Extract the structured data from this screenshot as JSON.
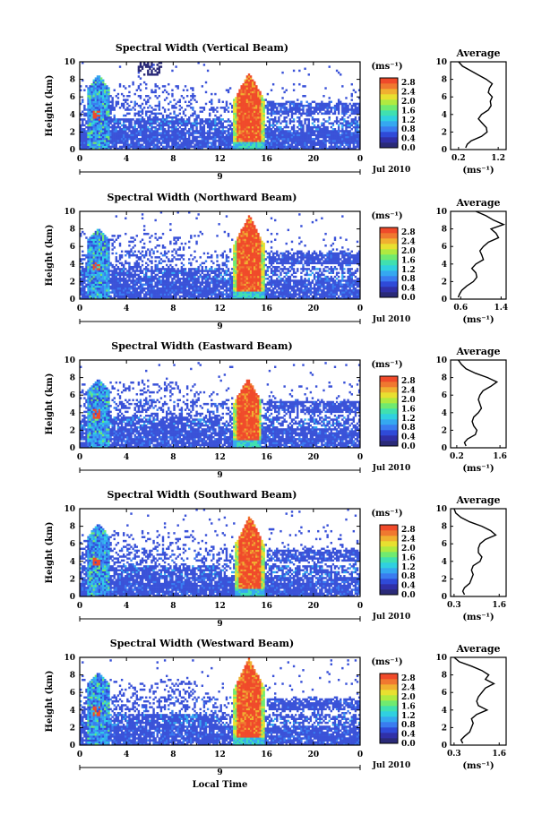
{
  "colors": {
    "colorbar": [
      "#2a2a78",
      "#3030a8",
      "#2f4ad8",
      "#3a7cf0",
      "#35a8f0",
      "#30d0e0",
      "#40e0b0",
      "#70ea70",
      "#b0ea40",
      "#e8e030",
      "#f0b030",
      "#f07830",
      "#f04a2a"
    ],
    "low": "#3a52d8",
    "mid": "#35b8e8",
    "high": "#f04a2a",
    "profile": "#000000"
  },
  "x_label": "Local Time",
  "date_label": "Jul 2010",
  "day_label": "9",
  "colorbar_unit": "(ms⁻¹)",
  "chart_data": [
    {
      "type": "heatmap",
      "title": "Spectral Width (Vertical Beam)",
      "ylabel": "Height (km)",
      "xlabel": "Local Time",
      "xlim": [
        0,
        24
      ],
      "ylim": [
        0,
        10
      ],
      "xticks": [
        "0",
        "4",
        "8",
        "12",
        "16",
        "20",
        "0"
      ],
      "yticks": [
        "0",
        "2",
        "4",
        "6",
        "8",
        "10"
      ],
      "colorbar": {
        "unit": "(ms⁻¹)",
        "ticks": [
          "0.0",
          "0.4",
          "0.8",
          "1.2",
          "1.6",
          "2.0",
          "2.4",
          "2.8"
        ],
        "range": [
          0,
          3.0
        ]
      },
      "features": {
        "convection_start_h": 13.2,
        "convection_end_h": 15.8,
        "convection_top_km": 8.8,
        "early_plume_h": [
          0.6,
          2.5
        ],
        "early_plume_top_km": 8.5
      },
      "profile": {
        "title": "Average",
        "xlabel": "(ms⁻¹)",
        "xticks": [
          "0.2",
          "1.2"
        ],
        "xlim": [
          0.0,
          1.4
        ],
        "height": [
          0.2,
          0.6,
          1.0,
          1.5,
          2.0,
          2.5,
          3.0,
          3.5,
          4.0,
          4.5,
          5.0,
          5.5,
          6.0,
          6.5,
          7.0,
          7.5,
          8.0,
          8.5,
          9.0,
          9.5,
          10.0
        ],
        "values": [
          0.38,
          0.42,
          0.52,
          0.78,
          0.92,
          0.9,
          0.8,
          0.7,
          0.78,
          0.95,
          1.02,
          1.0,
          1.05,
          0.95,
          0.98,
          1.05,
          0.9,
          0.7,
          0.5,
          0.3,
          0.2
        ]
      }
    },
    {
      "type": "heatmap",
      "title": "Spectral Width (Northward Beam)",
      "ylabel": "Height (km)",
      "xlabel": "Local Time",
      "xlim": [
        0,
        24
      ],
      "ylim": [
        0,
        10
      ],
      "xticks": [
        "0",
        "4",
        "8",
        "12",
        "16",
        "20",
        "0"
      ],
      "yticks": [
        "0",
        "2",
        "4",
        "6",
        "8",
        "10"
      ],
      "colorbar": {
        "unit": "(ms⁻¹)",
        "ticks": [
          "0.0",
          "0.4",
          "0.8",
          "1.2",
          "1.6",
          "2.0",
          "2.4",
          "2.8"
        ],
        "range": [
          0,
          3.0
        ]
      },
      "features": {
        "convection_start_h": 13.2,
        "convection_end_h": 15.8,
        "convection_top_km": 9.6,
        "early_plume_h": [
          0.6,
          2.5
        ],
        "early_plume_top_km": 8.2
      },
      "profile": {
        "title": "Average",
        "xlabel": "(ms⁻¹)",
        "xticks": [
          "0.6",
          "1.4"
        ],
        "xlim": [
          0.4,
          1.5
        ],
        "height": [
          0.2,
          0.6,
          1.0,
          1.5,
          2.0,
          2.5,
          3.0,
          3.5,
          4.0,
          4.5,
          5.0,
          5.5,
          6.0,
          6.5,
          7.0,
          7.5,
          8.0,
          8.5,
          9.0,
          9.5,
          10.0
        ],
        "values": [
          0.55,
          0.58,
          0.62,
          0.72,
          0.85,
          0.92,
          0.9,
          0.82,
          0.9,
          1.05,
          1.02,
          0.98,
          1.05,
          1.15,
          1.35,
          1.3,
          1.2,
          1.45,
          1.25,
          1.1,
          0.9
        ]
      }
    },
    {
      "type": "heatmap",
      "title": "Spectral Width (Eastward Beam)",
      "ylabel": "Height (km)",
      "xlabel": "Local Time",
      "xlim": [
        0,
        24
      ],
      "ylim": [
        0,
        10
      ],
      "xticks": [
        "0",
        "4",
        "8",
        "12",
        "16",
        "20",
        "0"
      ],
      "yticks": [
        "0",
        "2",
        "4",
        "6",
        "8",
        "10"
      ],
      "colorbar": {
        "unit": "(ms⁻¹)",
        "ticks": [
          "0.0",
          "0.4",
          "0.8",
          "1.2",
          "1.6",
          "2.0",
          "2.4",
          "2.8"
        ],
        "range": [
          0,
          3.0
        ]
      },
      "features": {
        "convection_start_h": 13.2,
        "convection_end_h": 15.6,
        "convection_top_km": 8.0,
        "early_plume_h": [
          0.6,
          2.5
        ],
        "early_plume_top_km": 8.0
      },
      "profile": {
        "title": "Average",
        "xlabel": "(ms⁻¹)",
        "xticks": [
          "0.2",
          "1.6"
        ],
        "xlim": [
          0.0,
          1.8
        ],
        "height": [
          0.2,
          0.6,
          1.0,
          1.5,
          2.0,
          2.5,
          3.0,
          3.5,
          4.0,
          4.5,
          5.0,
          5.5,
          6.0,
          6.5,
          7.0,
          7.5,
          8.0,
          8.5,
          9.0,
          9.5,
          10.0
        ],
        "values": [
          0.5,
          0.45,
          0.55,
          0.8,
          0.85,
          0.75,
          0.7,
          0.75,
          0.9,
          1.0,
          0.95,
          0.9,
          0.95,
          1.05,
          1.3,
          1.5,
          1.2,
          0.8,
          0.5,
          0.35,
          0.25
        ]
      }
    },
    {
      "type": "heatmap",
      "title": "Spectral Width (Southward Beam)",
      "ylabel": "Height (km)",
      "xlabel": "Local Time",
      "xlim": [
        0,
        24
      ],
      "ylim": [
        0,
        10
      ],
      "xticks": [
        "0",
        "4",
        "8",
        "12",
        "16",
        "20",
        "0"
      ],
      "yticks": [
        "0",
        "2",
        "4",
        "6",
        "8",
        "10"
      ],
      "colorbar": {
        "unit": "(ms⁻¹)",
        "ticks": [
          "0.0",
          "0.4",
          "0.8",
          "1.2",
          "1.6",
          "2.0",
          "2.4",
          "2.8"
        ],
        "range": [
          0,
          3.0
        ]
      },
      "features": {
        "convection_start_h": 13.3,
        "convection_end_h": 15.8,
        "convection_top_km": 9.2,
        "early_plume_h": [
          0.6,
          2.5
        ],
        "early_plume_top_km": 8.3
      },
      "profile": {
        "title": "Average",
        "xlabel": "(ms⁻¹)",
        "xticks": [
          "0.3",
          "1.6"
        ],
        "xlim": [
          0.2,
          1.8
        ],
        "height": [
          0.2,
          0.6,
          1.0,
          1.5,
          2.0,
          2.5,
          3.0,
          3.5,
          4.0,
          4.5,
          5.0,
          5.5,
          6.0,
          6.5,
          7.0,
          7.5,
          8.0,
          8.5,
          9.0,
          9.5,
          10.0
        ],
        "values": [
          0.6,
          0.55,
          0.6,
          0.75,
          0.8,
          0.85,
          0.8,
          0.85,
          1.05,
          1.1,
          1.0,
          1.0,
          1.05,
          1.2,
          1.5,
          1.35,
          1.1,
          0.75,
          0.5,
          0.35,
          0.3
        ]
      }
    },
    {
      "type": "heatmap",
      "title": "Spectral Width (Westward Beam)",
      "ylabel": "Height (km)",
      "xlabel": "Local Time",
      "xlim": [
        0,
        24
      ],
      "ylim": [
        0,
        10
      ],
      "xticks": [
        "0",
        "4",
        "8",
        "12",
        "16",
        "20",
        "0"
      ],
      "yticks": [
        "0",
        "2",
        "4",
        "6",
        "8",
        "10"
      ],
      "colorbar": {
        "unit": "(ms⁻¹)",
        "ticks": [
          "0.0",
          "0.4",
          "0.8",
          "1.2",
          "1.6",
          "2.0",
          "2.4",
          "2.8"
        ],
        "range": [
          0,
          3.0
        ]
      },
      "features": {
        "convection_start_h": 13.2,
        "convection_end_h": 15.8,
        "convection_top_km": 10.0,
        "early_plume_h": [
          0.6,
          2.5
        ],
        "early_plume_top_km": 8.4
      },
      "profile": {
        "title": "Average",
        "xlabel": "(ms⁻¹)",
        "xticks": [
          "0.3",
          "1.6"
        ],
        "xlim": [
          0.2,
          1.8
        ],
        "height": [
          0.2,
          0.6,
          1.0,
          1.5,
          2.0,
          2.5,
          3.0,
          3.5,
          4.0,
          4.5,
          5.0,
          5.5,
          6.0,
          6.5,
          7.0,
          7.5,
          8.0,
          8.5,
          9.0,
          9.5,
          10.0
        ],
        "values": [
          0.55,
          0.5,
          0.6,
          0.75,
          0.8,
          0.85,
          0.8,
          0.95,
          1.25,
          1.0,
          0.95,
          1.0,
          1.1,
          1.2,
          1.45,
          1.2,
          1.3,
          1.1,
          0.8,
          0.45,
          0.3
        ]
      }
    }
  ]
}
